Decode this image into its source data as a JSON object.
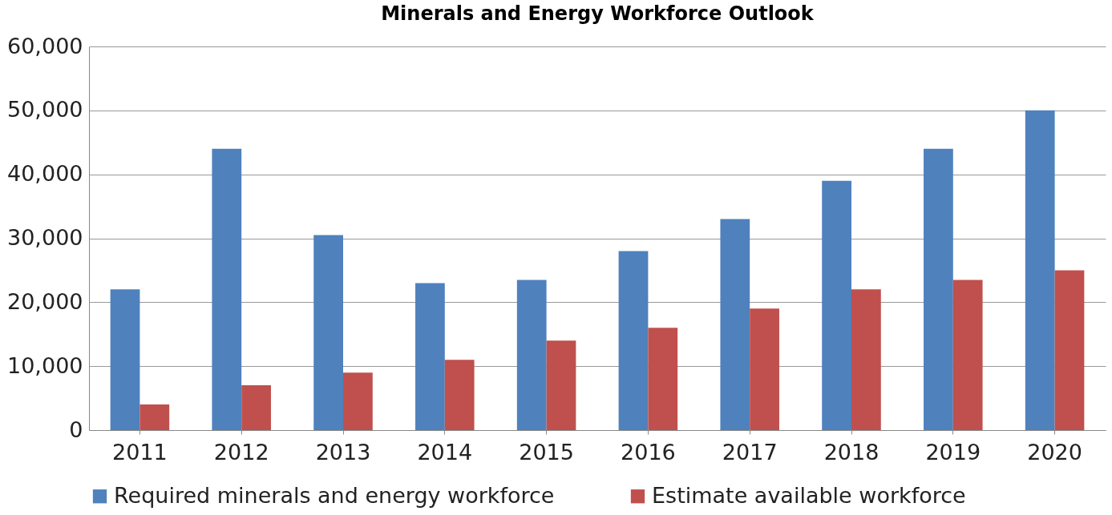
{
  "chart_data": {
    "type": "bar",
    "title": "Minerals and Energy Workforce Outlook",
    "categories": [
      "2011",
      "2012",
      "2013",
      "2014",
      "2015",
      "2016",
      "2017",
      "2018",
      "2019",
      "2020"
    ],
    "series": [
      {
        "name": "Required minerals and energy workforce",
        "color": "#4f81bd",
        "values": [
          22000,
          44000,
          30500,
          23000,
          23500,
          28000,
          33000,
          39000,
          44000,
          50000
        ]
      },
      {
        "name": "Estimate available workforce",
        "color": "#c0504d",
        "values": [
          4000,
          7000,
          9000,
          11000,
          14000,
          16000,
          19000,
          22000,
          23500,
          25000
        ]
      }
    ],
    "ylim": [
      0,
      60000
    ],
    "yticks": [
      0,
      {
        "value": 10000,
        "label": "10,000"
      },
      {
        "value": 20000,
        "label": "20,000"
      },
      {
        "value": 30000,
        "label": "30,000"
      },
      {
        "value": 40000,
        "label": "40,000"
      },
      {
        "value": 50000,
        "label": "50,000"
      },
      {
        "value": 60000,
        "label": "60,000"
      }
    ],
    "grid": "y",
    "legend": "bottom"
  }
}
